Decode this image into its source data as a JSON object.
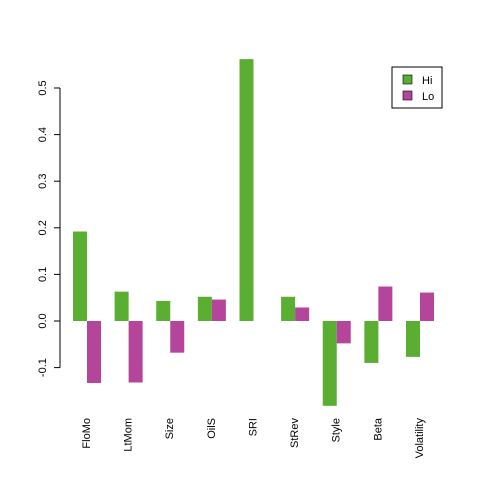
{
  "chart_data": {
    "type": "bar",
    "title": "",
    "xlabel": "",
    "ylabel": "",
    "categories": [
      "FloMo",
      "LtMom",
      "Size",
      "OilS",
      "SRI",
      "StRev",
      "Style",
      "Beta",
      "Volatility"
    ],
    "series": [
      {
        "name": "Hi",
        "color": "#5aaf32",
        "values": [
          0.192,
          0.063,
          0.043,
          0.052,
          0.562,
          0.052,
          -0.182,
          -0.09,
          -0.077
        ]
      },
      {
        "name": "Lo",
        "color": "#b5459b",
        "values": [
          -0.133,
          -0.132,
          -0.068,
          0.046,
          0.0,
          0.029,
          -0.048,
          0.074,
          0.061
        ]
      }
    ],
    "ylim": [
      -0.19,
      0.57
    ],
    "y_ticks": [
      "-0.1",
      "0.0",
      "0.1",
      "0.2",
      "0.3",
      "0.4",
      "0.5"
    ],
    "grid": false,
    "legend_position": "top-right"
  }
}
